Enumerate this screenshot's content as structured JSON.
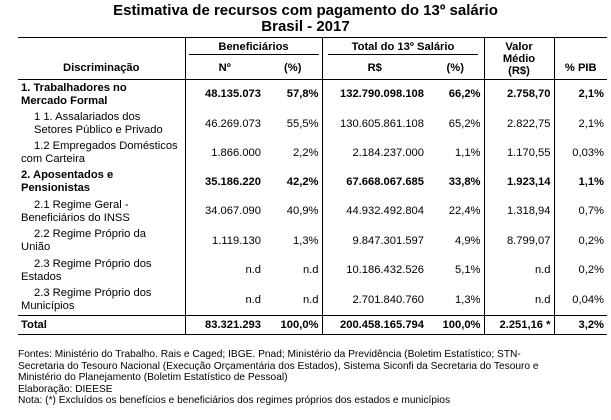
{
  "title": "Estimativa de recursos com pagamento do 13º salário",
  "subtitle": "Brasil - 2017",
  "headers": {
    "discriminacao": "Discriminação",
    "beneficiarios": "Beneficiários",
    "total": "Total do 13º Salário",
    "valor_medio_1": "Valor",
    "valor_medio_2": "Médio",
    "valor_medio_3": "(R$)",
    "pct_pib": "% PIB",
    "n": "Nº",
    "pct": "(%)",
    "rs": "R$",
    "pct2": "(%)"
  },
  "rows": [
    {
      "label1": "1. Trabalhadores no",
      "label2": "Mercado Formal",
      "n": "48.135.073",
      "pct": "57,8%",
      "rs": "132.790.098.108",
      "pct2": "66,2%",
      "medio": "2.758,70",
      "pib": "2,1%"
    },
    {
      "label1": "1 1. Assalariados dos",
      "label2": "Setores Público e Privado",
      "n": "46.269.073",
      "pct": "55,5%",
      "rs": "130.605.861.108",
      "pct2": "65,2%",
      "medio": "2.822,75",
      "pib": "2,1%"
    },
    {
      "label1": "1.2 Empregados Domésticos",
      "label2": "com Carteira",
      "n": "1.866.000",
      "pct": "2,2%",
      "rs": "2.184.237.000",
      "pct2": "1,1%",
      "medio": "1.170,55",
      "pib": "0,03%"
    },
    {
      "label1": "2. Aposentados e",
      "label2": "Pensionistas",
      "n": "35.186.220",
      "pct": "42,2%",
      "rs": "67.668.067.685",
      "pct2": "33,8%",
      "medio": "1.923,14",
      "pib": "1,1%"
    },
    {
      "label1": "2.1 Regime Geral -",
      "label2": "Beneficiários do INSS",
      "n": "34.067.090",
      "pct": "40,9%",
      "rs": "44.932.492.804",
      "pct2": "22,4%",
      "medio": "1.318,94",
      "pib": "0,7%"
    },
    {
      "label1": "2.2 Regime Próprio da",
      "label2": "União",
      "n": "1.119.130",
      "pct": "1,3%",
      "rs": "9.847.301.597",
      "pct2": "4,9%",
      "medio": "8.799,07",
      "pib": "0,2%"
    },
    {
      "label1": "2.3 Regime Próprio dos",
      "label2": "Estados",
      "n": "n.d",
      "pct": "n.d",
      "rs": "10.186.432.526",
      "pct2": "5,1%",
      "medio": "n.d",
      "pib": "0,2%"
    },
    {
      "label1": "2.3 Regime Próprio dos",
      "label2": "Municípios",
      "n": "n.d",
      "pct": "n.d",
      "rs": "2.701.840.760",
      "pct2": "1,3%",
      "medio": "n.d",
      "pib": "0,04%"
    }
  ],
  "total": {
    "label": "Total",
    "n": "83.321.293",
    "pct": "100,0%",
    "rs": "200.458.165.794",
    "pct2": "100,0%",
    "medio": "2.251,16 *",
    "pib": "3,2%"
  },
  "notes": [
    "Fontes: Ministério do Trabalho. Rais e Caged; IBGE. Pnad; Ministério da Previdência (Boletim Estatístico; STN-",
    "Secretaria do Tesouro Nacional (Execução Orçamentária dos Estados), Sistema Siconfi da Secretaria do Tesouro e",
    "Ministério do Planejamento (Boletim Estatístico de Pessoal)",
    "Elaboração: DIEESE",
    "Nota: (*) Excluídos os benefícios e beneficiários dos regimes próprios dos estados e municípios"
  ]
}
